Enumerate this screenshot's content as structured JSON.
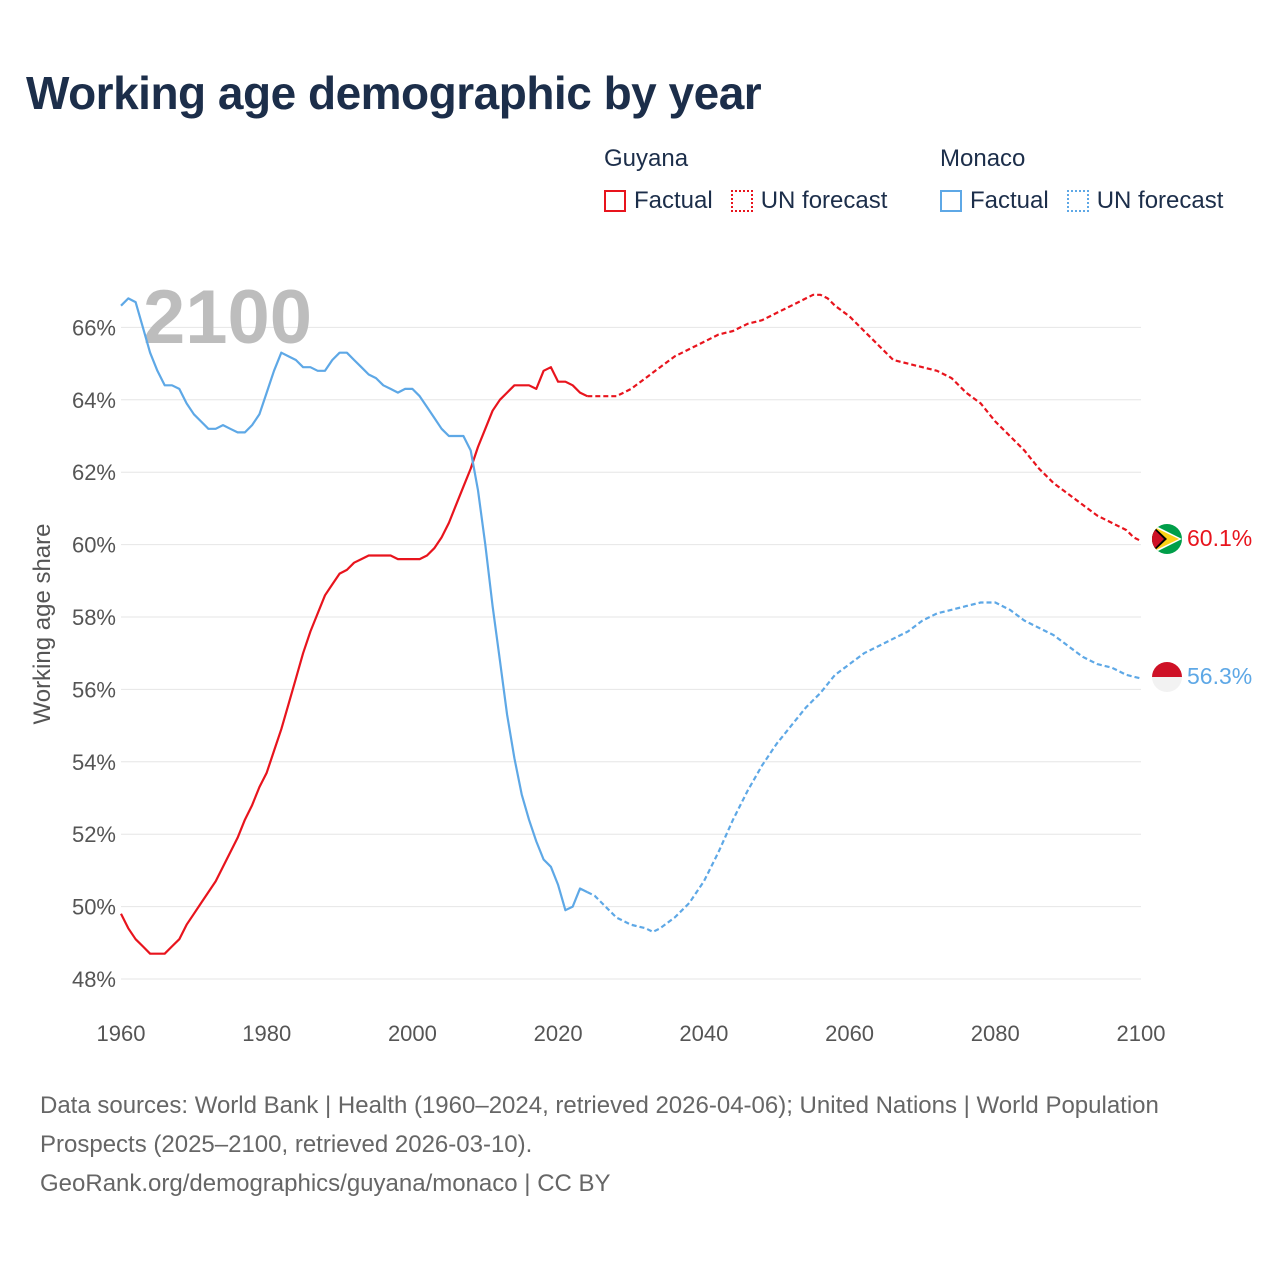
{
  "title": "Working age demographic by year",
  "legend": {
    "groups": [
      {
        "name": "Guyana",
        "factual": "Factual",
        "forecast": "UN forecast",
        "color": "#e8141d"
      },
      {
        "name": "Monaco",
        "factual": "Factual",
        "forecast": "UN forecast",
        "color": "#5ea8e6"
      }
    ]
  },
  "footer": {
    "sources": "Data sources: World Bank | Health (1960–2024, retrieved 2026-04-06); United Nations | World Population Prospects (2025–2100, retrieved 2026-03-10).",
    "link": "GeoRank.org/demographics/guyana/monaco | CC BY"
  },
  "chart_data": {
    "type": "line",
    "title": "Working age demographic by year",
    "year_label": "2100",
    "xlabel": "",
    "ylabel": "Working age share",
    "xlim": [
      1960,
      2100
    ],
    "ylim": [
      47.5,
      67
    ],
    "x_ticks": [
      "1960",
      "1980",
      "2000",
      "2020",
      "2040",
      "2060",
      "2080",
      "2100"
    ],
    "y_ticks": [
      "48%",
      "50%",
      "52%",
      "54%",
      "56%",
      "58%",
      "60%",
      "62%",
      "64%",
      "66%"
    ],
    "grid": true,
    "series": [
      {
        "name": "Guyana",
        "color": "#e8141d",
        "end_label": "60.1%",
        "flag": "guyana-flag",
        "factual": [
          [
            1960,
            49.8
          ],
          [
            1961,
            49.4
          ],
          [
            1962,
            49.1
          ],
          [
            1963,
            48.9
          ],
          [
            1964,
            48.7
          ],
          [
            1965,
            48.7
          ],
          [
            1966,
            48.7
          ],
          [
            1967,
            48.9
          ],
          [
            1968,
            49.1
          ],
          [
            1969,
            49.5
          ],
          [
            1970,
            49.8
          ],
          [
            1971,
            50.1
          ],
          [
            1972,
            50.4
          ],
          [
            1973,
            50.7
          ],
          [
            1974,
            51.1
          ],
          [
            1975,
            51.5
          ],
          [
            1976,
            51.9
          ],
          [
            1977,
            52.4
          ],
          [
            1978,
            52.8
          ],
          [
            1979,
            53.3
          ],
          [
            1980,
            53.7
          ],
          [
            1981,
            54.3
          ],
          [
            1982,
            54.9
          ],
          [
            1983,
            55.6
          ],
          [
            1984,
            56.3
          ],
          [
            1985,
            57.0
          ],
          [
            1986,
            57.6
          ],
          [
            1987,
            58.1
          ],
          [
            1988,
            58.6
          ],
          [
            1989,
            58.9
          ],
          [
            1990,
            59.2
          ],
          [
            1991,
            59.3
          ],
          [
            1992,
            59.5
          ],
          [
            1993,
            59.6
          ],
          [
            1994,
            59.7
          ],
          [
            1995,
            59.7
          ],
          [
            1996,
            59.7
          ],
          [
            1997,
            59.7
          ],
          [
            1998,
            59.6
          ],
          [
            1999,
            59.6
          ],
          [
            2000,
            59.6
          ],
          [
            2001,
            59.6
          ],
          [
            2002,
            59.7
          ],
          [
            2003,
            59.9
          ],
          [
            2004,
            60.2
          ],
          [
            2005,
            60.6
          ],
          [
            2006,
            61.1
          ],
          [
            2007,
            61.6
          ],
          [
            2008,
            62.1
          ],
          [
            2009,
            62.7
          ],
          [
            2010,
            63.2
          ],
          [
            2011,
            63.7
          ],
          [
            2012,
            64.0
          ],
          [
            2013,
            64.2
          ],
          [
            2014,
            64.4
          ],
          [
            2015,
            64.4
          ],
          [
            2016,
            64.4
          ],
          [
            2017,
            64.3
          ],
          [
            2018,
            64.8
          ],
          [
            2019,
            64.9
          ],
          [
            2020,
            64.5
          ],
          [
            2021,
            64.5
          ],
          [
            2022,
            64.4
          ],
          [
            2023,
            64.2
          ],
          [
            2024,
            64.1
          ]
        ],
        "forecast": [
          [
            2024,
            64.1
          ],
          [
            2025,
            64.1
          ],
          [
            2026,
            64.1
          ],
          [
            2027,
            64.1
          ],
          [
            2028,
            64.1
          ],
          [
            2029,
            64.2
          ],
          [
            2030,
            64.3
          ],
          [
            2032,
            64.6
          ],
          [
            2034,
            64.9
          ],
          [
            2036,
            65.2
          ],
          [
            2038,
            65.4
          ],
          [
            2040,
            65.6
          ],
          [
            2042,
            65.8
          ],
          [
            2044,
            65.9
          ],
          [
            2046,
            66.1
          ],
          [
            2048,
            66.2
          ],
          [
            2050,
            66.4
          ],
          [
            2052,
            66.6
          ],
          [
            2054,
            66.8
          ],
          [
            2055,
            66.9
          ],
          [
            2056,
            66.9
          ],
          [
            2057,
            66.8
          ],
          [
            2058,
            66.6
          ],
          [
            2060,
            66.3
          ],
          [
            2062,
            65.9
          ],
          [
            2064,
            65.5
          ],
          [
            2066,
            65.1
          ],
          [
            2068,
            65.0
          ],
          [
            2070,
            64.9
          ],
          [
            2072,
            64.8
          ],
          [
            2074,
            64.6
          ],
          [
            2076,
            64.2
          ],
          [
            2078,
            63.9
          ],
          [
            2080,
            63.4
          ],
          [
            2082,
            63.0
          ],
          [
            2084,
            62.6
          ],
          [
            2086,
            62.1
          ],
          [
            2088,
            61.7
          ],
          [
            2090,
            61.4
          ],
          [
            2092,
            61.1
          ],
          [
            2094,
            60.8
          ],
          [
            2096,
            60.6
          ],
          [
            2098,
            60.4
          ],
          [
            2099,
            60.2
          ],
          [
            2100,
            60.1
          ]
        ]
      },
      {
        "name": "Monaco",
        "color": "#5ea8e6",
        "end_label": "56.3%",
        "flag": "monaco-flag",
        "factual": [
          [
            1960,
            66.6
          ],
          [
            1961,
            66.8
          ],
          [
            1962,
            66.7
          ],
          [
            1963,
            66.0
          ],
          [
            1964,
            65.3
          ],
          [
            1965,
            64.8
          ],
          [
            1966,
            64.4
          ],
          [
            1967,
            64.4
          ],
          [
            1968,
            64.3
          ],
          [
            1969,
            63.9
          ],
          [
            1970,
            63.6
          ],
          [
            1971,
            63.4
          ],
          [
            1972,
            63.2
          ],
          [
            1973,
            63.2
          ],
          [
            1974,
            63.3
          ],
          [
            1975,
            63.2
          ],
          [
            1976,
            63.1
          ],
          [
            1977,
            63.1
          ],
          [
            1978,
            63.3
          ],
          [
            1979,
            63.6
          ],
          [
            1980,
            64.2
          ],
          [
            1981,
            64.8
          ],
          [
            1982,
            65.3
          ],
          [
            1983,
            65.2
          ],
          [
            1984,
            65.1
          ],
          [
            1985,
            64.9
          ],
          [
            1986,
            64.9
          ],
          [
            1987,
            64.8
          ],
          [
            1988,
            64.8
          ],
          [
            1989,
            65.1
          ],
          [
            1990,
            65.3
          ],
          [
            1991,
            65.3
          ],
          [
            1992,
            65.1
          ],
          [
            1993,
            64.9
          ],
          [
            1994,
            64.7
          ],
          [
            1995,
            64.6
          ],
          [
            1996,
            64.4
          ],
          [
            1997,
            64.3
          ],
          [
            1998,
            64.2
          ],
          [
            1999,
            64.3
          ],
          [
            2000,
            64.3
          ],
          [
            2001,
            64.1
          ],
          [
            2002,
            63.8
          ],
          [
            2003,
            63.5
          ],
          [
            2004,
            63.2
          ],
          [
            2005,
            63.0
          ],
          [
            2006,
            63.0
          ],
          [
            2007,
            63.0
          ],
          [
            2008,
            62.6
          ],
          [
            2009,
            61.5
          ],
          [
            2010,
            60.0
          ],
          [
            2011,
            58.3
          ],
          [
            2012,
            56.8
          ],
          [
            2013,
            55.3
          ],
          [
            2014,
            54.1
          ],
          [
            2015,
            53.1
          ],
          [
            2016,
            52.4
          ],
          [
            2017,
            51.8
          ],
          [
            2018,
            51.3
          ],
          [
            2019,
            51.1
          ],
          [
            2020,
            50.6
          ],
          [
            2021,
            49.9
          ],
          [
            2022,
            50.0
          ],
          [
            2023,
            50.5
          ],
          [
            2024,
            50.4
          ]
        ],
        "forecast": [
          [
            2024,
            50.4
          ],
          [
            2025,
            50.3
          ],
          [
            2026,
            50.1
          ],
          [
            2027,
            49.9
          ],
          [
            2028,
            49.7
          ],
          [
            2030,
            49.5
          ],
          [
            2032,
            49.4
          ],
          [
            2033,
            49.3
          ],
          [
            2034,
            49.4
          ],
          [
            2036,
            49.7
          ],
          [
            2038,
            50.1
          ],
          [
            2040,
            50.7
          ],
          [
            2042,
            51.5
          ],
          [
            2044,
            52.4
          ],
          [
            2046,
            53.2
          ],
          [
            2048,
            53.9
          ],
          [
            2050,
            54.5
          ],
          [
            2052,
            55.0
          ],
          [
            2054,
            55.5
          ],
          [
            2056,
            55.9
          ],
          [
            2058,
            56.4
          ],
          [
            2060,
            56.7
          ],
          [
            2062,
            57.0
          ],
          [
            2064,
            57.2
          ],
          [
            2066,
            57.4
          ],
          [
            2068,
            57.6
          ],
          [
            2070,
            57.9
          ],
          [
            2072,
            58.1
          ],
          [
            2074,
            58.2
          ],
          [
            2076,
            58.3
          ],
          [
            2078,
            58.4
          ],
          [
            2080,
            58.4
          ],
          [
            2082,
            58.2
          ],
          [
            2084,
            57.9
          ],
          [
            2086,
            57.7
          ],
          [
            2088,
            57.5
          ],
          [
            2090,
            57.2
          ],
          [
            2092,
            56.9
          ],
          [
            2094,
            56.7
          ],
          [
            2096,
            56.6
          ],
          [
            2098,
            56.4
          ],
          [
            2100,
            56.3
          ]
        ]
      }
    ]
  }
}
